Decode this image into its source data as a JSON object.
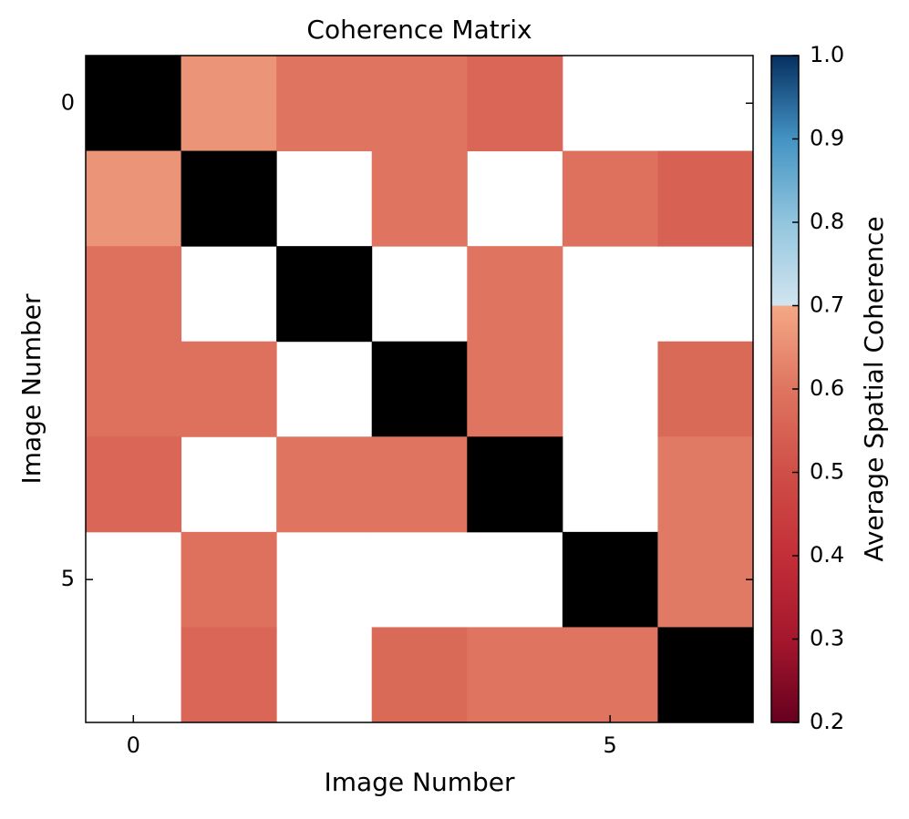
{
  "chart_data": {
    "type": "heatmap",
    "title": "Coherence Matrix",
    "x_label": "Image Number",
    "y_label": "Image Number",
    "colorbar_label": "Average Spatial Coherence",
    "values": [
      [
        null,
        0.66,
        0.6,
        0.6,
        0.56,
        null,
        null
      ],
      [
        0.66,
        null,
        null,
        0.6,
        null,
        0.59,
        0.55
      ],
      [
        0.59,
        null,
        null,
        null,
        0.6,
        null,
        null
      ],
      [
        0.59,
        0.59,
        null,
        null,
        0.6,
        null,
        0.57
      ],
      [
        0.56,
        null,
        0.6,
        0.6,
        null,
        null,
        0.61
      ],
      [
        null,
        0.59,
        null,
        null,
        null,
        null,
        0.61
      ],
      [
        null,
        0.56,
        null,
        0.57,
        0.6,
        0.6,
        null
      ]
    ],
    "diagonal_color": "#000000",
    "xlim": [
      -0.5,
      6.5
    ],
    "ylim": [
      6.5,
      -0.5
    ],
    "xticks": [
      0,
      5
    ],
    "yticks": [
      0,
      5
    ],
    "clim": [
      0.2,
      1.0
    ],
    "cticks": [
      0.2,
      0.3,
      0.4,
      0.5,
      0.6,
      0.7,
      0.8,
      0.9,
      {
        "value": 1.0,
        "label": "1.0"
      }
    ],
    "colorscale": [
      [
        0.2,
        "#67001f"
      ],
      [
        0.3,
        "#a5172d"
      ],
      [
        0.4,
        "#c32f38"
      ],
      [
        0.5,
        "#cf4f47"
      ],
      [
        0.6,
        "#df7560"
      ],
      [
        0.7,
        "#f4a886"
      ],
      [
        0.7,
        "#d1e5f0"
      ],
      [
        0.8,
        "#92c5de"
      ],
      [
        0.9,
        "#4393c3"
      ],
      [
        1.0,
        "#053061"
      ]
    ]
  }
}
